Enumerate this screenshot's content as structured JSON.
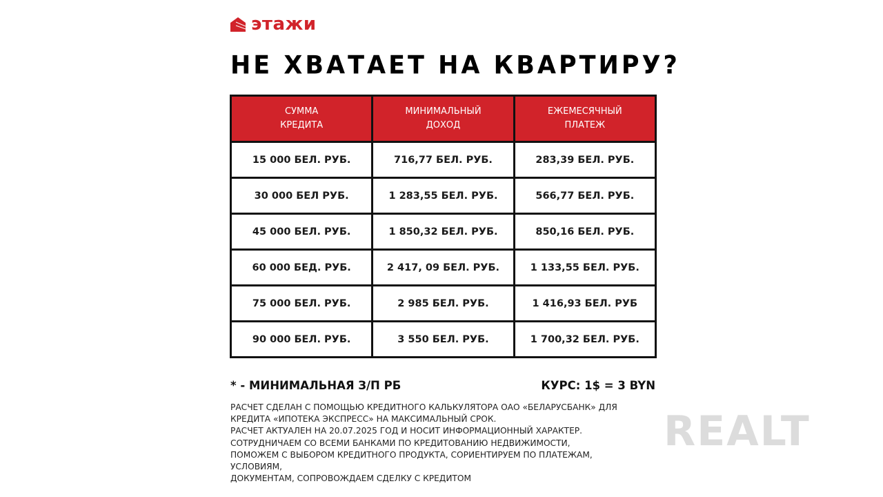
{
  "brand": {
    "name": "этажи",
    "color": "#d1232a"
  },
  "title": "НЕ ХВАТАЕТ НА КВАРТИРУ?",
  "table": {
    "headers": [
      "СУММА\nКРЕДИТА",
      "МИНИМАЛЬНЫЙ\nДОХОД",
      "ЕЖЕМЕСЯЧНЫЙ\nПЛАТЕЖ"
    ],
    "rows": [
      [
        "15 000 БЕЛ. РУБ.",
        "716,77 БЕЛ. РУБ.",
        "283,39 БЕЛ. РУБ."
      ],
      [
        "30 000 БЕЛ РУБ.",
        "1 283,55 БЕЛ. РУБ.",
        "566,77 БЕЛ. РУБ."
      ],
      [
        "45 000 БЕЛ. РУБ.",
        "1 850,32 БЕЛ. РУБ.",
        "850,16 БЕЛ. РУБ."
      ],
      [
        "60 000 БЕД. РУБ.",
        "2 417, 09 БЕЛ. РУБ.",
        "1 133,55 БЕЛ. РУБ."
      ],
      [
        "75 000 БЕЛ. РУБ.",
        "2 985 БЕЛ. РУБ.",
        "1 416,93 БЕЛ. РУБ"
      ],
      [
        "90 000 БЕЛ. РУБ.",
        "3 550 БЕЛ. РУБ.",
        "1 700,32 БЕЛ. РУБ."
      ]
    ]
  },
  "footnote": "* - МИНИМАЛЬНАЯ З/П РБ",
  "rate": "КУРС: 1$ = 3 BYN",
  "info_lines": [
    "РАСЧЕТ СДЕЛАН С ПОМОЩЬЮ КРЕДИТНОГО КАЛЬКУЛЯТОРА ОАО «БЕЛАРУСБАНК» ДЛЯ",
    "КРЕДИТА «ИПОТЕКА ЭКСПРЕСС» НА МАКСИМАЛЬНЫЙ СРОК.",
    "РАСЧЕТ АКТУАЛЕН НА 20.07.2025 ГОД И НОСИТ ИНФОРМАЦИОННЫЙ ХАРАКТЕР.",
    "СОТРУДНИЧАЕМ СО ВСЕМИ БАНКАМИ ПО КРЕДИТОВАНИЮ НЕДВИЖИМОСТИ,",
    "ПОМОЖЕМ С ВЫБОРОМ КРЕДИТНОГО ПРОДУКТА, СОРИЕНТИРУЕМ ПО ПЛАТЕЖАМ,",
    "УСЛОВИЯМ,",
    "ДОКУМЕНТАМ, СОПРОВОЖДАЕМ СДЕЛКУ С КРЕДИТОМ"
  ],
  "watermark": "REALT"
}
